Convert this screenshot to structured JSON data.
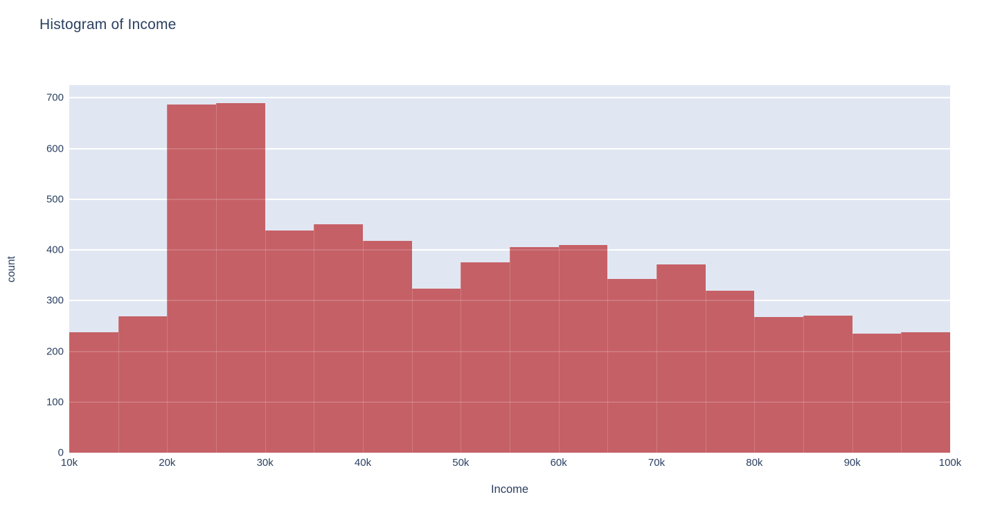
{
  "chart_data": {
    "type": "bar",
    "subtype": "histogram",
    "title": "Histogram of Income",
    "xlabel": "Income",
    "ylabel": "count",
    "bin_edges_k": [
      10,
      15,
      20,
      25,
      30,
      35,
      40,
      45,
      50,
      55,
      60,
      65,
      70,
      75,
      80,
      85,
      90,
      95,
      100
    ],
    "categories": [
      "10k-15k",
      "15k-20k",
      "20k-25k",
      "25k-30k",
      "30k-35k",
      "35k-40k",
      "40k-45k",
      "45k-50k",
      "50k-55k",
      "55k-60k",
      "60k-65k",
      "65k-70k",
      "70k-75k",
      "75k-80k",
      "80k-85k",
      "85k-90k",
      "90k-95k",
      "95k-100k"
    ],
    "values": [
      238,
      269,
      687,
      690,
      438,
      450,
      418,
      323,
      376,
      405,
      409,
      343,
      372,
      319,
      267,
      271,
      235,
      237
    ],
    "x_ticks": [
      {
        "value": 10,
        "label": "10k"
      },
      {
        "value": 20,
        "label": "20k"
      },
      {
        "value": 30,
        "label": "30k"
      },
      {
        "value": 40,
        "label": "40k"
      },
      {
        "value": 50,
        "label": "50k"
      },
      {
        "value": 60,
        "label": "60k"
      },
      {
        "value": 70,
        "label": "70k"
      },
      {
        "value": 80,
        "label": "80k"
      },
      {
        "value": 90,
        "label": "90k"
      },
      {
        "value": 100,
        "label": "100k"
      }
    ],
    "y_ticks": [
      0,
      100,
      200,
      300,
      400,
      500,
      600,
      700
    ],
    "xlim_k": [
      10,
      100
    ],
    "ylim": [
      0,
      725
    ],
    "grid": true,
    "legend": false,
    "colors": {
      "bar": "#c56066",
      "plot_background": "#e1e7f2",
      "gridline": "#ffffff",
      "text": "#2a3f5f",
      "page_background": "#ffffff"
    }
  }
}
